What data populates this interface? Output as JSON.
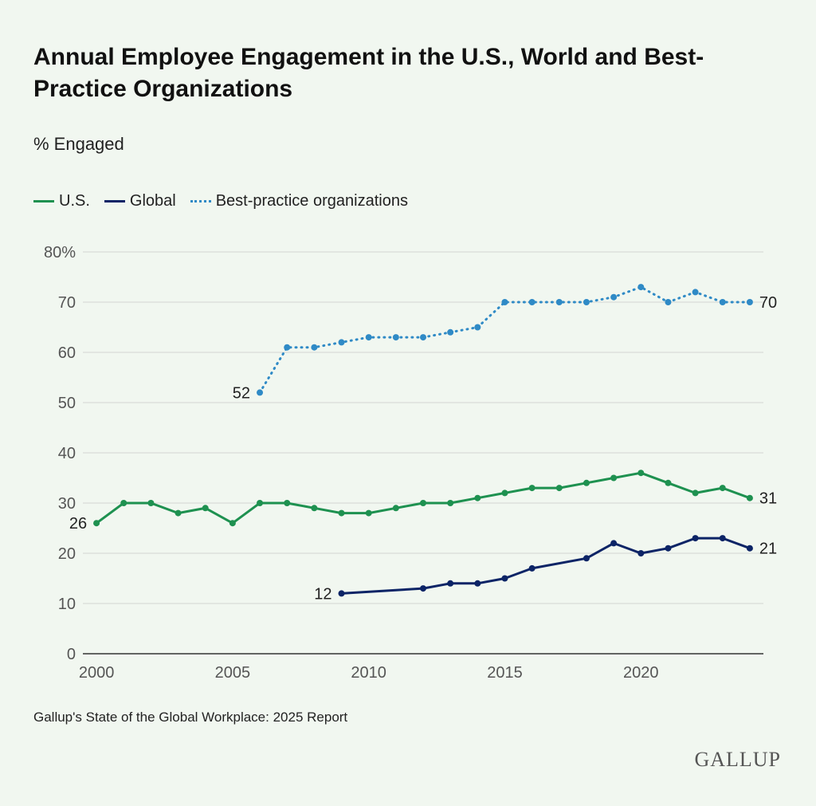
{
  "header": {
    "title": "Annual Employee Engagement in the U.S., World and Best-Practice Organizations",
    "subtitle": "% Engaged"
  },
  "legend": {
    "us": "U.S.",
    "global": "Global",
    "best": "Best-practice organizations"
  },
  "footer": {
    "source": "Gallup's State of the Global Workplace: 2025 Report",
    "logo": "GALLUP"
  },
  "colors": {
    "us": "#1e9150",
    "global": "#0c2466",
    "best": "#2f8ac6",
    "grid": "#d2d6d2",
    "axis_text": "#555555"
  },
  "chart_data": {
    "type": "line",
    "title": "Annual Employee Engagement in the U.S., World and Best-Practice Organizations",
    "ylabel": "% Engaged",
    "xlabel": "",
    "xlim": [
      1999.5,
      2024.5
    ],
    "ylim": [
      0,
      80
    ],
    "y_ticks": [
      0,
      10,
      20,
      30,
      40,
      50,
      60,
      70,
      80
    ],
    "y_tick_labels": [
      "0",
      "10",
      "20",
      "30",
      "40",
      "50",
      "60",
      "70",
      "80%"
    ],
    "x_ticks": [
      2000,
      2005,
      2010,
      2015,
      2020
    ],
    "x_tick_labels": [
      "2000",
      "2005",
      "2010",
      "2015",
      "2020"
    ],
    "grid": true,
    "series": [
      {
        "key": "best",
        "name": "Best-practice organizations",
        "style": "dotted",
        "x": [
          2006,
          2007,
          2008,
          2009,
          2010,
          2011,
          2012,
          2013,
          2014,
          2015,
          2016,
          2017,
          2018,
          2019,
          2020,
          2021,
          2022,
          2023,
          2024
        ],
        "y": [
          52,
          61,
          61,
          62,
          63,
          63,
          63,
          64,
          65,
          70,
          70,
          70,
          70,
          71,
          73,
          70,
          72,
          70,
          70
        ],
        "start_label": "52",
        "end_label": "70"
      },
      {
        "key": "us",
        "name": "U.S.",
        "style": "solid",
        "x": [
          2000,
          2001,
          2002,
          2003,
          2004,
          2005,
          2006,
          2007,
          2008,
          2009,
          2010,
          2011,
          2012,
          2013,
          2014,
          2015,
          2016,
          2017,
          2018,
          2019,
          2020,
          2021,
          2022,
          2023,
          2024
        ],
        "y": [
          26,
          30,
          30,
          28,
          29,
          26,
          30,
          30,
          29,
          28,
          28,
          29,
          30,
          30,
          31,
          32,
          33,
          33,
          34,
          35,
          36,
          34,
          32,
          33,
          31
        ],
        "start_label": "26",
        "end_label": "31"
      },
      {
        "key": "global",
        "name": "Global",
        "style": "solid",
        "x": [
          2009,
          2012,
          2013,
          2014,
          2015,
          2016,
          2018,
          2019,
          2020,
          2021,
          2022,
          2023,
          2024
        ],
        "y": [
          12,
          13,
          14,
          14,
          15,
          17,
          19,
          22,
          20,
          21,
          23,
          23,
          21
        ],
        "start_label": "12",
        "end_label": "21"
      }
    ]
  }
}
